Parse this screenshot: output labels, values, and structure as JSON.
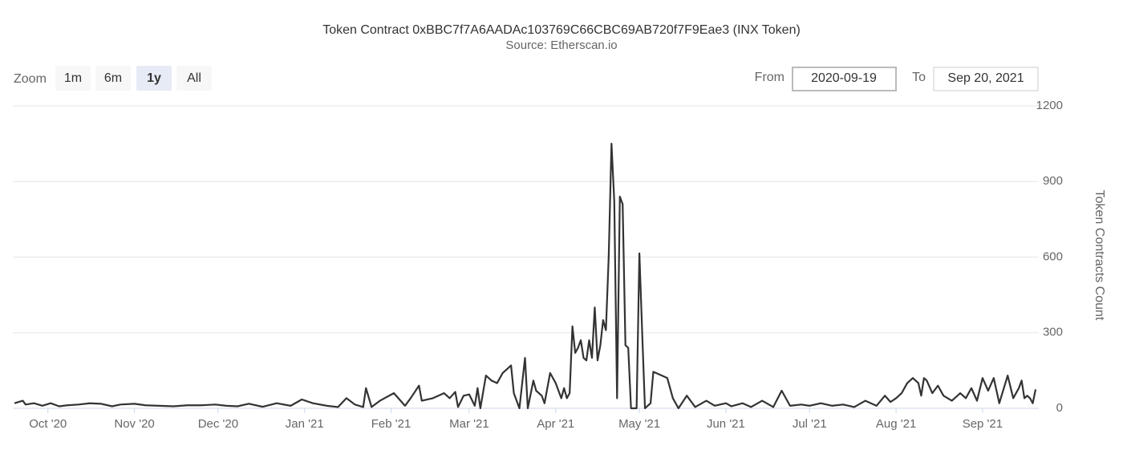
{
  "chart_data": {
    "type": "line",
    "title": "Token Contract 0xBBC7f7A6AADAc103769C66CBC69AB720f7F9Eae3 (INX Token)",
    "subtitle": "Source: Etherscan.io",
    "range_selector": {
      "label": "Zoom",
      "buttons": [
        "1m",
        "6m",
        "1y",
        "All"
      ],
      "selected": 2
    },
    "from_label": "From",
    "from": "2020-09-19",
    "to_label": "To",
    "to": "Sep 20, 2021",
    "y_axis_title": "Token Contracts Count",
    "grid": true,
    "color": "#333333",
    "xlim": [
      "2020-09-19",
      "2021-09-20"
    ],
    "xticks": [
      {
        "value": "2020-10-01",
        "label": "Oct '20"
      },
      {
        "value": "2020-11-01",
        "label": "Nov '20"
      },
      {
        "value": "2020-12-01",
        "label": "Dec '20"
      },
      {
        "value": "2021-01-01",
        "label": "Jan '21"
      },
      {
        "value": "2021-02-01",
        "label": "Feb '21"
      },
      {
        "value": "2021-03-01",
        "label": "Mar '21"
      },
      {
        "value": "2021-04-01",
        "label": "Apr '21"
      },
      {
        "value": "2021-05-01",
        "label": "May '21"
      },
      {
        "value": "2021-06-01",
        "label": "Jun '21"
      },
      {
        "value": "2021-07-01",
        "label": "Jul '21"
      },
      {
        "value": "2021-08-01",
        "label": "Aug '21"
      },
      {
        "value": "2021-09-01",
        "label": "Sep '21"
      }
    ],
    "ylim": [
      0,
      1200
    ],
    "yticks": [
      0,
      300,
      600,
      900,
      1200
    ],
    "x": [
      "2020-09-19",
      "2020-09-22",
      "2020-09-23",
      "2020-09-26",
      "2020-09-29",
      "2020-10-02",
      "2020-10-05",
      "2020-10-08",
      "2020-10-12",
      "2020-10-16",
      "2020-10-20",
      "2020-10-24",
      "2020-10-27",
      "2020-11-01",
      "2020-11-05",
      "2020-11-10",
      "2020-11-15",
      "2020-11-20",
      "2020-11-25",
      "2020-11-30",
      "2020-12-04",
      "2020-12-08",
      "2020-12-12",
      "2020-12-17",
      "2020-12-22",
      "2020-12-27",
      "2020-12-31",
      "2021-01-04",
      "2021-01-09",
      "2021-01-13",
      "2021-01-16",
      "2021-01-19",
      "2021-01-22",
      "2021-01-23",
      "2021-01-25",
      "2021-01-28",
      "2021-02-02",
      "2021-02-06",
      "2021-02-08",
      "2021-02-11",
      "2021-02-12",
      "2021-02-16",
      "2021-02-20",
      "2021-02-22",
      "2021-02-24",
      "2021-02-25",
      "2021-02-27",
      "2021-03-01",
      "2021-03-03",
      "2021-03-04",
      "2021-03-05",
      "2021-03-07",
      "2021-03-09",
      "2021-03-11",
      "2021-03-13",
      "2021-03-16",
      "2021-03-17",
      "2021-03-19",
      "2021-03-21",
      "2021-03-22",
      "2021-03-24",
      "2021-03-25",
      "2021-03-27",
      "2021-03-28",
      "2021-03-30",
      "2021-04-01",
      "2021-04-03",
      "2021-04-04",
      "2021-04-05",
      "2021-04-06",
      "2021-04-07",
      "2021-04-08",
      "2021-04-09",
      "2021-04-10",
      "2021-04-11",
      "2021-04-12",
      "2021-04-13",
      "2021-04-14",
      "2021-04-15",
      "2021-04-16",
      "2021-04-17",
      "2021-04-18",
      "2021-04-19",
      "2021-04-20",
      "2021-04-21",
      "2021-04-22",
      "2021-04-23",
      "2021-04-24",
      "2021-04-25",
      "2021-04-26",
      "2021-04-27",
      "2021-04-28",
      "2021-04-30",
      "2021-05-01",
      "2021-05-02",
      "2021-05-03",
      "2021-05-05",
      "2021-05-06",
      "2021-05-09",
      "2021-05-11",
      "2021-05-13",
      "2021-05-15",
      "2021-05-18",
      "2021-05-21",
      "2021-05-25",
      "2021-05-28",
      "2021-06-01",
      "2021-06-03",
      "2021-06-07",
      "2021-06-10",
      "2021-06-14",
      "2021-06-18",
      "2021-06-21",
      "2021-06-24",
      "2021-06-28",
      "2021-07-01",
      "2021-07-05",
      "2021-07-09",
      "2021-07-13",
      "2021-07-17",
      "2021-07-21",
      "2021-07-25",
      "2021-07-28",
      "2021-07-30",
      "2021-08-01",
      "2021-08-03",
      "2021-08-05",
      "2021-08-07",
      "2021-08-09",
      "2021-08-10",
      "2021-08-11",
      "2021-08-12",
      "2021-08-14",
      "2021-08-16",
      "2021-08-18",
      "2021-08-21",
      "2021-08-24",
      "2021-08-26",
      "2021-08-28",
      "2021-08-30",
      "2021-09-01",
      "2021-09-03",
      "2021-09-05",
      "2021-09-07",
      "2021-09-10",
      "2021-09-12",
      "2021-09-14",
      "2021-09-15",
      "2021-09-16",
      "2021-09-17",
      "2021-09-18",
      "2021-09-19",
      "2021-09-20"
    ],
    "values": [
      20,
      30,
      15,
      20,
      10,
      20,
      8,
      12,
      15,
      20,
      18,
      8,
      15,
      18,
      12,
      10,
      8,
      12,
      12,
      15,
      10,
      8,
      18,
      6,
      20,
      10,
      35,
      20,
      10,
      5,
      40,
      15,
      5,
      80,
      5,
      30,
      60,
      10,
      40,
      90,
      30,
      40,
      60,
      40,
      65,
      5,
      50,
      55,
      10,
      80,
      0,
      130,
      110,
      100,
      140,
      170,
      60,
      0,
      200,
      0,
      110,
      70,
      50,
      20,
      140,
      100,
      40,
      80,
      40,
      60,
      325,
      220,
      240,
      270,
      200,
      190,
      270,
      200,
      400,
      190,
      250,
      350,
      310,
      600,
      1050,
      820,
      40,
      840,
      810,
      250,
      240,
      0,
      0,
      615,
      300,
      0,
      20,
      145,
      130,
      120,
      40,
      0,
      50,
      5,
      30,
      10,
      20,
      8,
      20,
      5,
      30,
      5,
      70,
      10,
      15,
      10,
      20,
      10,
      15,
      5,
      30,
      10,
      50,
      25,
      40,
      60,
      100,
      120,
      100,
      50,
      120,
      110,
      60,
      90,
      50,
      30,
      60,
      40,
      80,
      30,
      120,
      70,
      120,
      20,
      130,
      40,
      80,
      110,
      40,
      50,
      40,
      20,
      75
    ]
  }
}
